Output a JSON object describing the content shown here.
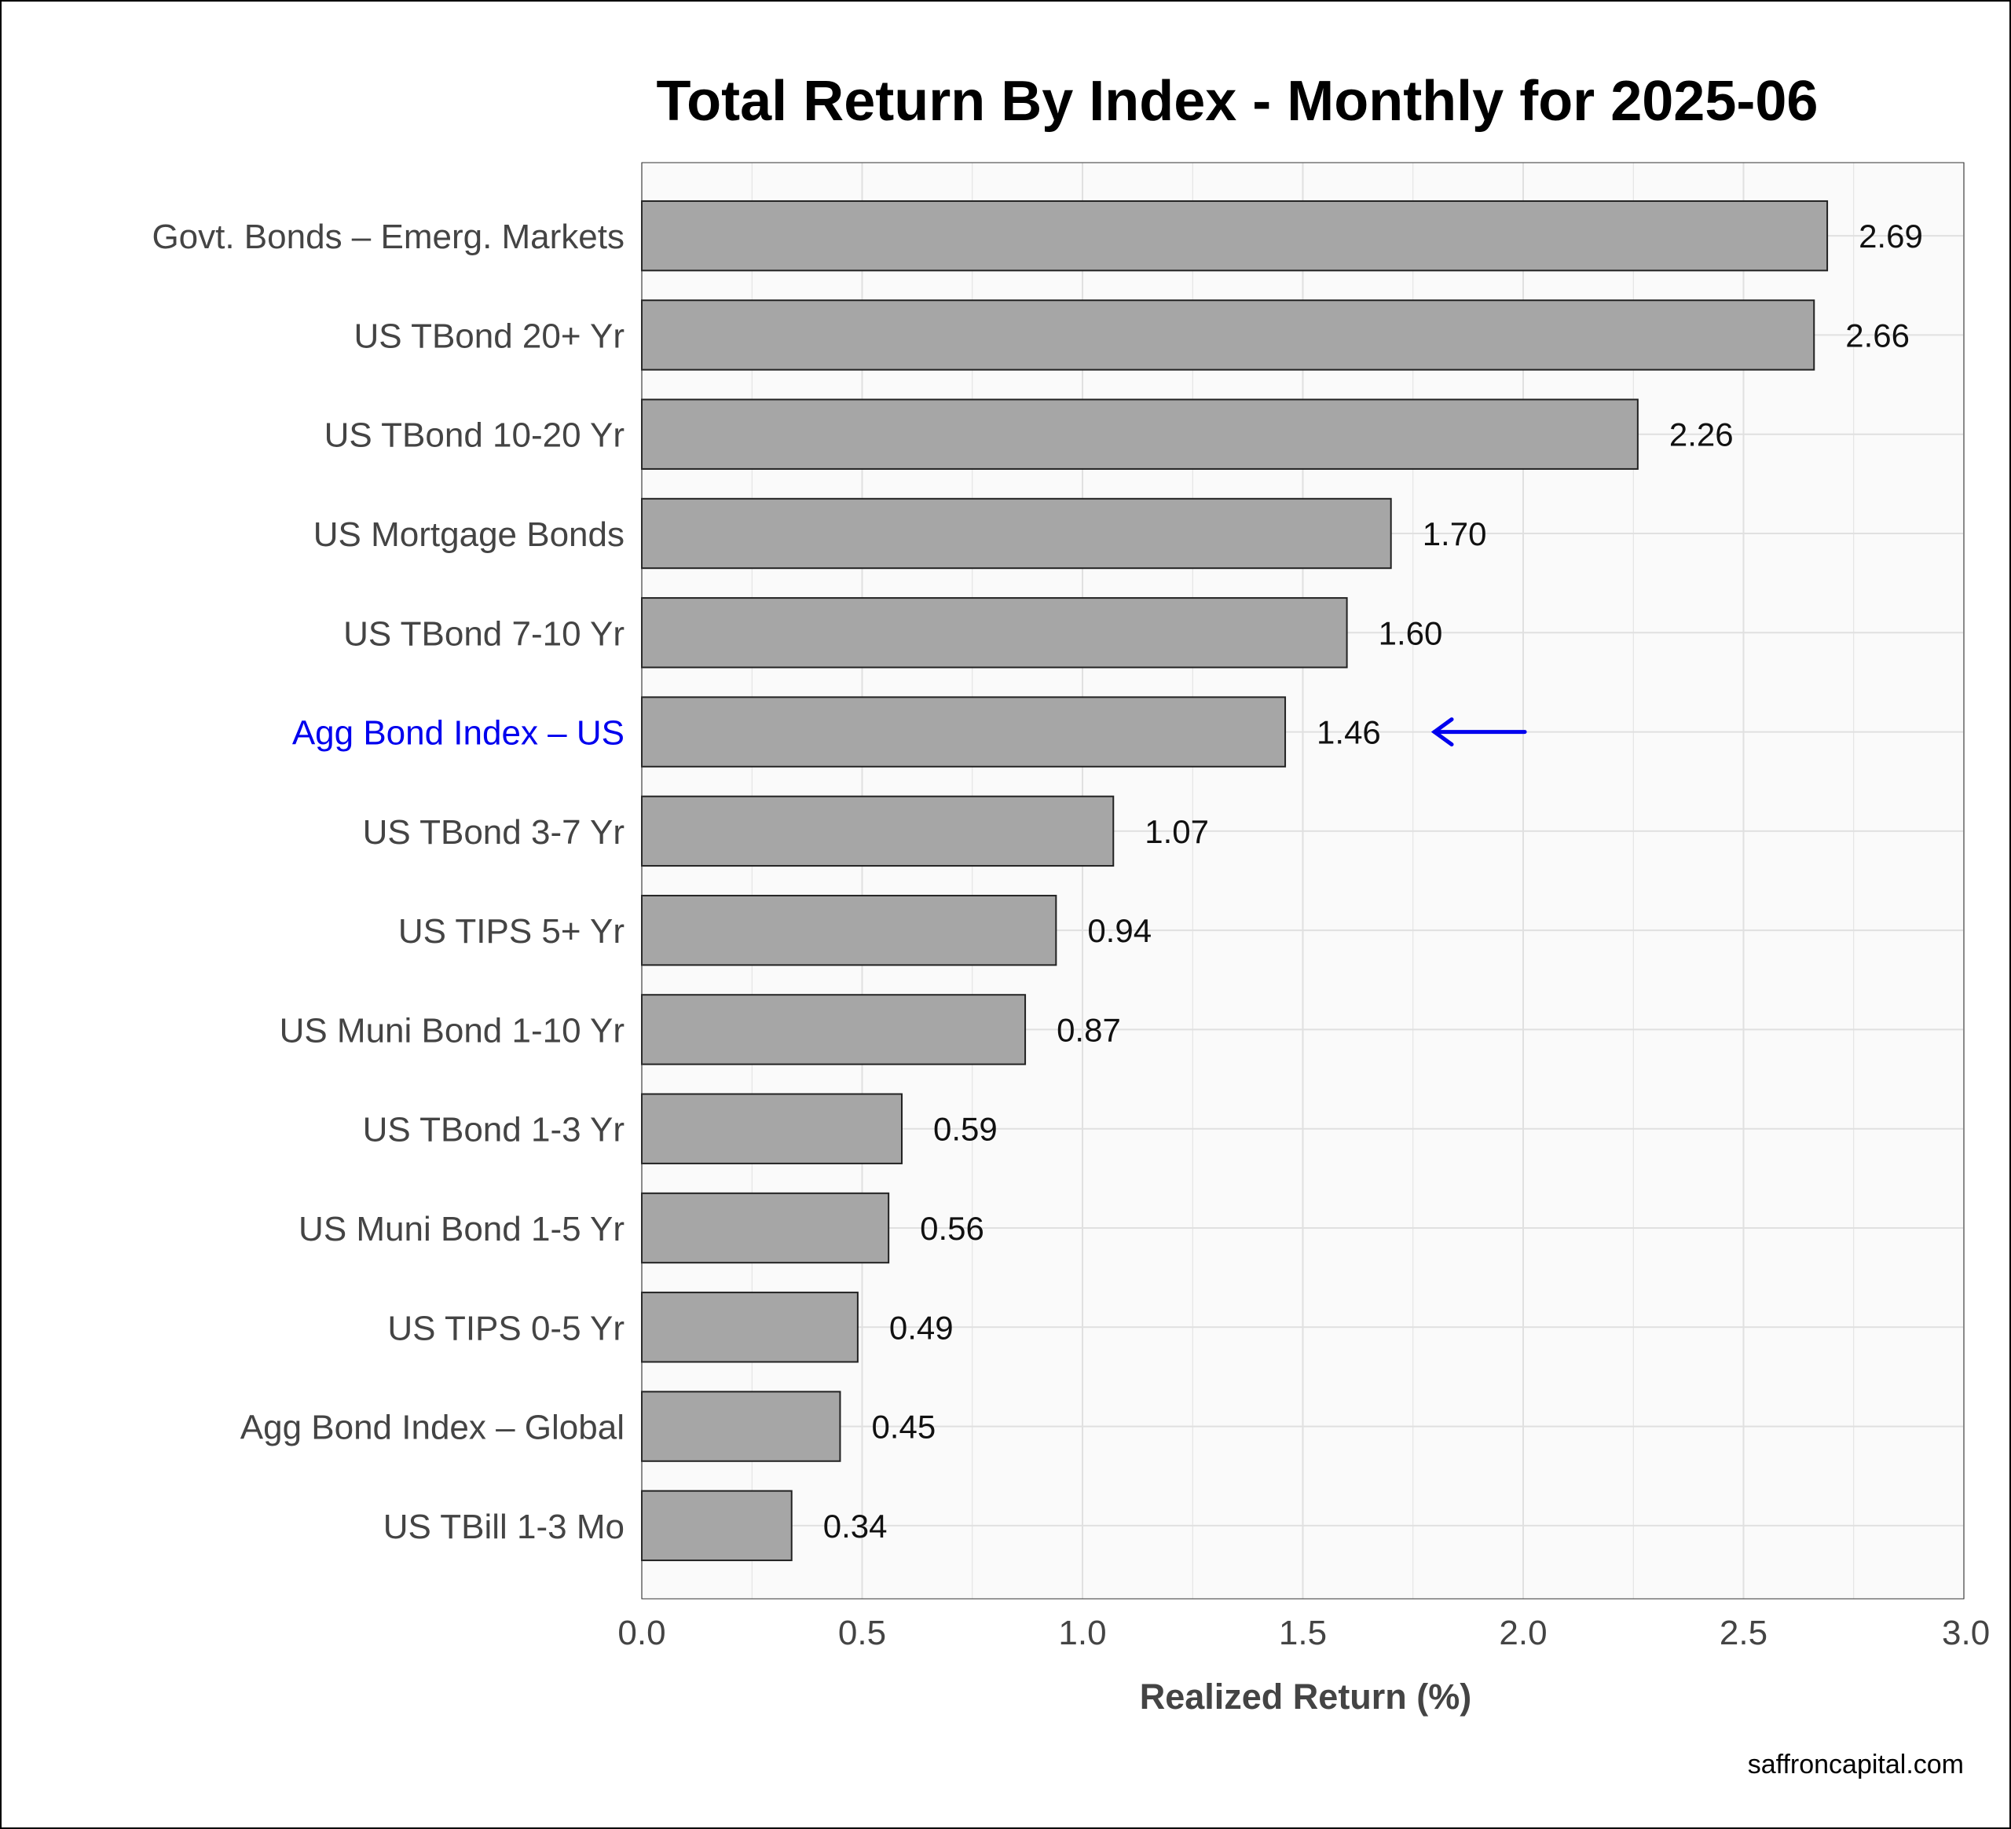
{
  "chart_data": {
    "type": "bar",
    "orientation": "horizontal",
    "title": "Total Return By Index - Monthly for 2025-06",
    "xlabel": "Realized Return (%)",
    "ylabel": "",
    "xlim": [
      0,
      3.0
    ],
    "xticks": [
      "0.0",
      "0.5",
      "1.0",
      "1.5",
      "2.0",
      "2.5",
      "3.0"
    ],
    "grid": true,
    "categories": [
      "Govt. Bonds – Emerg. Markets",
      "US TBond 20+ Yr",
      "US TBond 10-20 Yr",
      "US Mortgage Bonds",
      "US TBond 7-10 Yr",
      "Agg Bond Index – US",
      "US TBond 3-7 Yr",
      "US TIPS 5+ Yr",
      "US Muni Bond 1-10 Yr",
      "US TBond 1-3 Yr",
      "US Muni Bond 1-5 Yr",
      "US TIPS 0-5 Yr",
      "Agg Bond Index – Global",
      "US TBill 1-3 Mo"
    ],
    "values": [
      2.69,
      2.66,
      2.26,
      1.7,
      1.6,
      1.46,
      1.07,
      0.94,
      0.87,
      0.59,
      0.56,
      0.49,
      0.45,
      0.34
    ],
    "value_labels": [
      "2.69",
      "2.66",
      "2.26",
      "1.70",
      "1.60",
      "1.46",
      "1.07",
      "0.94",
      "0.87",
      "0.59",
      "0.56",
      "0.49",
      "0.45",
      "0.34"
    ],
    "highlight_category": "Agg Bond Index – US",
    "highlight_marker": "arrow pointing left at value label",
    "colors": {
      "bar_fill": "#a6a6a6",
      "bar_stroke": "#222222",
      "highlight_text": "#0000ee",
      "panel_background": "#fafafa",
      "grid": "#e0e0e0"
    }
  },
  "caption": "saffroncapital.com"
}
